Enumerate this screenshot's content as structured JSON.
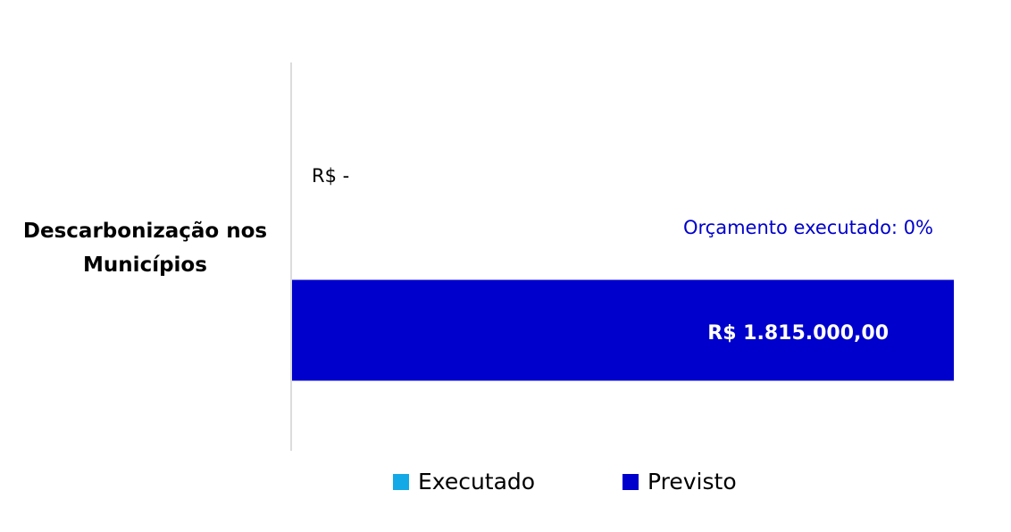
{
  "chart_data": {
    "type": "bar",
    "orientation": "horizontal",
    "categories": [
      "Descarbonização nos Municípios"
    ],
    "series": [
      {
        "name": "Executado",
        "color": "#13a9e6",
        "values": [
          0
        ],
        "value_labels": [
          "R$ -"
        ]
      },
      {
        "name": "Previsto",
        "color": "#0000cc",
        "values": [
          1815000
        ],
        "value_labels": [
          "R$ 1.815.000,00"
        ]
      }
    ],
    "annotation": "Orçamento executado: 0%",
    "legend": "bottom"
  }
}
